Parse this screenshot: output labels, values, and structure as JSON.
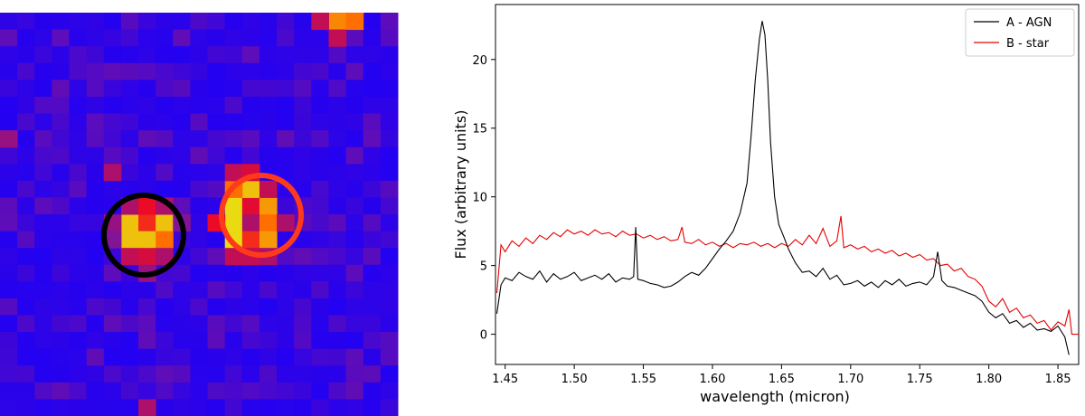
{
  "image_panel": {
    "grid": {
      "cols": 23,
      "rows": 24
    },
    "colors": {
      "background": "#1f00f5",
      "circle_a": "#000000",
      "circle_b": "#ff3a1a"
    },
    "hot_pixels": [
      {
        "c": 7,
        "r": 12,
        "v": 0.95
      },
      {
        "c": 8,
        "r": 12,
        "v": 0.75
      },
      {
        "c": 9,
        "r": 12,
        "v": 0.95
      },
      {
        "c": 7,
        "r": 13,
        "v": 0.95
      },
      {
        "c": 8,
        "r": 13,
        "v": 0.95
      },
      {
        "c": 9,
        "r": 13,
        "v": 0.85
      },
      {
        "c": 7,
        "r": 11,
        "v": 0.55
      },
      {
        "c": 8,
        "r": 11,
        "v": 0.7
      },
      {
        "c": 9,
        "r": 11,
        "v": 0.55
      },
      {
        "c": 6,
        "r": 12,
        "v": 0.5
      },
      {
        "c": 6,
        "r": 13,
        "v": 0.45
      },
      {
        "c": 10,
        "r": 12,
        "v": 0.45
      },
      {
        "c": 7,
        "r": 14,
        "v": 0.6
      },
      {
        "c": 8,
        "r": 14,
        "v": 0.65
      },
      {
        "c": 9,
        "r": 14,
        "v": 0.55
      },
      {
        "c": 6,
        "r": 9,
        "v": 0.55
      },
      {
        "c": 8,
        "r": 15,
        "v": 0.5
      },
      {
        "c": 13,
        "r": 11,
        "v": 0.98
      },
      {
        "c": 14,
        "r": 11,
        "v": 0.68
      },
      {
        "c": 15,
        "r": 11,
        "v": 0.9
      },
      {
        "c": 13,
        "r": 12,
        "v": 0.98
      },
      {
        "c": 14,
        "r": 12,
        "v": 0.55
      },
      {
        "c": 15,
        "r": 12,
        "v": 0.85
      },
      {
        "c": 13,
        "r": 13,
        "v": 0.98
      },
      {
        "c": 14,
        "r": 13,
        "v": 0.75
      },
      {
        "c": 15,
        "r": 13,
        "v": 0.9
      },
      {
        "c": 14,
        "r": 10,
        "v": 0.95
      },
      {
        "c": 13,
        "r": 10,
        "v": 0.85
      },
      {
        "c": 15,
        "r": 10,
        "v": 0.6
      },
      {
        "c": 12,
        "r": 12,
        "v": 0.7
      },
      {
        "c": 16,
        "r": 12,
        "v": 0.55
      },
      {
        "c": 13,
        "r": 9,
        "v": 0.6
      },
      {
        "c": 14,
        "r": 9,
        "v": 0.65
      },
      {
        "c": 13,
        "r": 14,
        "v": 0.6
      },
      {
        "c": 14,
        "r": 14,
        "v": 0.6
      },
      {
        "c": 15,
        "r": 14,
        "v": 0.55
      },
      {
        "c": 19,
        "r": 0,
        "v": 0.88
      },
      {
        "c": 20,
        "r": 0,
        "v": 0.85
      },
      {
        "c": 18,
        "r": 0,
        "v": 0.6
      },
      {
        "c": 19,
        "r": 1,
        "v": 0.6
      },
      {
        "c": 8,
        "r": 23,
        "v": 0.55
      },
      {
        "c": 0,
        "r": 7,
        "v": 0.5
      }
    ]
  },
  "chart_data": {
    "type": "line",
    "xlabel": "wavelength (micron)",
    "ylabel": "Flux (arbitrary units)",
    "xlim": [
      1.443,
      1.865
    ],
    "ylim": [
      -2.2,
      24.0
    ],
    "xticks": [
      "1.45",
      "1.50",
      "1.55",
      "1.60",
      "1.65",
      "1.70",
      "1.75",
      "1.80",
      "1.85"
    ],
    "xtick_values": [
      1.45,
      1.5,
      1.55,
      1.6,
      1.65,
      1.7,
      1.75,
      1.8,
      1.85
    ],
    "yticks": [
      "0",
      "5",
      "10",
      "15",
      "20"
    ],
    "ytick_values": [
      0,
      5,
      10,
      15,
      20
    ],
    "grid": false,
    "legend_position": "top-right",
    "series": [
      {
        "name": "A - AGN",
        "color": "#000000",
        "x": [
          1.444,
          1.447,
          1.45,
          1.455,
          1.46,
          1.465,
          1.47,
          1.475,
          1.48,
          1.485,
          1.49,
          1.495,
          1.5,
          1.505,
          1.51,
          1.515,
          1.52,
          1.525,
          1.53,
          1.535,
          1.54,
          1.543,
          1.5445,
          1.546,
          1.55,
          1.555,
          1.56,
          1.565,
          1.57,
          1.575,
          1.58,
          1.585,
          1.59,
          1.595,
          1.6,
          1.605,
          1.61,
          1.615,
          1.62,
          1.625,
          1.628,
          1.631,
          1.634,
          1.636,
          1.638,
          1.64,
          1.642,
          1.645,
          1.648,
          1.652,
          1.655,
          1.66,
          1.665,
          1.67,
          1.675,
          1.68,
          1.685,
          1.69,
          1.695,
          1.7,
          1.705,
          1.71,
          1.715,
          1.72,
          1.725,
          1.73,
          1.735,
          1.74,
          1.745,
          1.75,
          1.755,
          1.76,
          1.763,
          1.766,
          1.77,
          1.775,
          1.78,
          1.785,
          1.79,
          1.795,
          1.8,
          1.805,
          1.81,
          1.815,
          1.82,
          1.825,
          1.83,
          1.835,
          1.84,
          1.845,
          1.85,
          1.855,
          1.858
        ],
        "y": [
          1.5,
          3.6,
          4.1,
          3.9,
          4.5,
          4.2,
          4.0,
          4.6,
          3.8,
          4.4,
          4.0,
          4.2,
          4.5,
          3.9,
          4.1,
          4.3,
          4.0,
          4.4,
          3.8,
          4.1,
          4.0,
          4.2,
          7.8,
          4.0,
          3.9,
          3.7,
          3.6,
          3.4,
          3.5,
          3.8,
          4.2,
          4.5,
          4.3,
          4.8,
          5.5,
          6.2,
          6.8,
          7.5,
          8.8,
          11.0,
          14.5,
          18.5,
          21.5,
          22.8,
          21.8,
          18.5,
          14.0,
          10.0,
          8.0,
          7.0,
          6.2,
          5.2,
          4.5,
          4.6,
          4.2,
          4.8,
          4.0,
          4.3,
          3.6,
          3.7,
          3.9,
          3.5,
          3.8,
          3.4,
          3.9,
          3.6,
          4.0,
          3.5,
          3.7,
          3.8,
          3.6,
          4.2,
          6.0,
          3.9,
          3.5,
          3.4,
          3.2,
          3.0,
          2.8,
          2.4,
          1.6,
          1.2,
          1.5,
          0.8,
          1.0,
          0.5,
          0.8,
          0.3,
          0.4,
          0.2,
          0.6,
          -0.2,
          -1.5
        ]
      },
      {
        "name": "B - star",
        "color": "#e50000",
        "x": [
          1.444,
          1.447,
          1.45,
          1.455,
          1.46,
          1.465,
          1.47,
          1.475,
          1.48,
          1.485,
          1.49,
          1.495,
          1.5,
          1.505,
          1.51,
          1.515,
          1.52,
          1.525,
          1.53,
          1.535,
          1.54,
          1.545,
          1.55,
          1.555,
          1.56,
          1.565,
          1.57,
          1.575,
          1.578,
          1.58,
          1.585,
          1.59,
          1.595,
          1.6,
          1.605,
          1.61,
          1.615,
          1.62,
          1.625,
          1.63,
          1.635,
          1.64,
          1.645,
          1.65,
          1.655,
          1.66,
          1.665,
          1.67,
          1.675,
          1.68,
          1.685,
          1.69,
          1.693,
          1.695,
          1.7,
          1.705,
          1.71,
          1.715,
          1.72,
          1.725,
          1.73,
          1.735,
          1.74,
          1.745,
          1.75,
          1.755,
          1.76,
          1.765,
          1.77,
          1.775,
          1.78,
          1.785,
          1.79,
          1.795,
          1.8,
          1.805,
          1.81,
          1.815,
          1.82,
          1.825,
          1.83,
          1.835,
          1.84,
          1.845,
          1.85,
          1.855,
          1.858,
          1.86,
          1.865
        ],
        "y": [
          3.0,
          6.5,
          6.0,
          6.8,
          6.4,
          7.0,
          6.6,
          7.2,
          6.9,
          7.4,
          7.1,
          7.6,
          7.3,
          7.5,
          7.2,
          7.6,
          7.3,
          7.4,
          7.1,
          7.5,
          7.2,
          7.3,
          7.0,
          7.2,
          6.9,
          7.1,
          6.8,
          6.9,
          7.8,
          6.7,
          6.6,
          6.9,
          6.5,
          6.7,
          6.4,
          6.6,
          6.3,
          6.6,
          6.5,
          6.7,
          6.4,
          6.6,
          6.3,
          6.6,
          6.4,
          6.9,
          6.5,
          7.2,
          6.6,
          7.7,
          6.4,
          6.8,
          8.6,
          6.3,
          6.5,
          6.2,
          6.4,
          6.0,
          6.2,
          5.9,
          6.1,
          5.7,
          5.9,
          5.6,
          5.8,
          5.4,
          5.5,
          5.0,
          5.1,
          4.6,
          4.8,
          4.2,
          4.0,
          3.5,
          2.4,
          2.0,
          2.6,
          1.6,
          1.9,
          1.2,
          1.4,
          0.8,
          1.0,
          0.3,
          0.9,
          0.6,
          1.8,
          0.0,
          0.0
        ]
      }
    ]
  }
}
